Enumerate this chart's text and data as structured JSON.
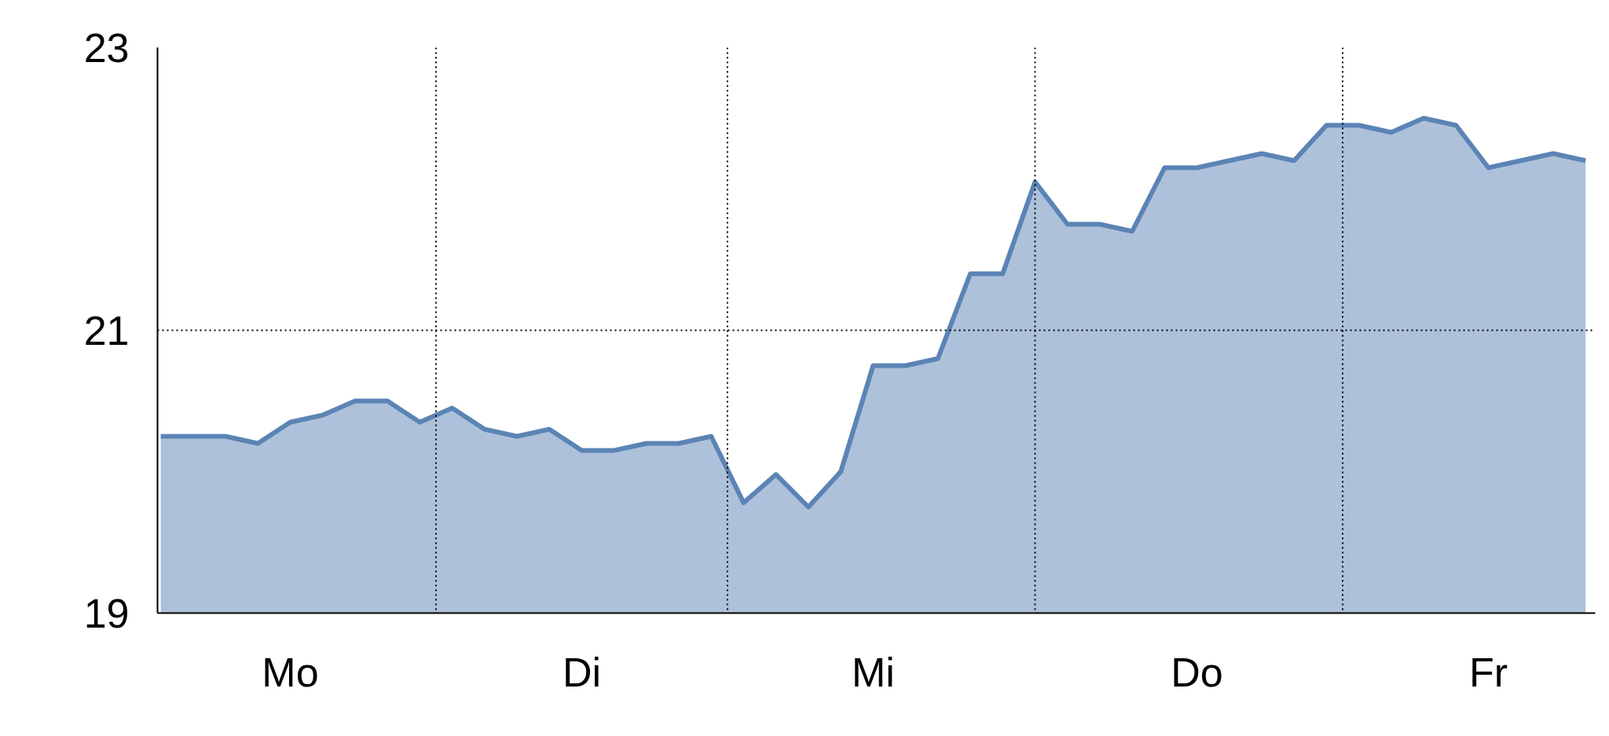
{
  "chart_data": {
    "type": "area",
    "categories": [
      null,
      null,
      null,
      null,
      "Mo",
      null,
      null,
      null,
      null,
      null,
      null,
      null,
      null,
      "Di",
      null,
      null,
      null,
      null,
      null,
      null,
      null,
      null,
      "Mi",
      null,
      null,
      null,
      null,
      null,
      null,
      null,
      null,
      null,
      "Do",
      null,
      null,
      null,
      null,
      null,
      null,
      null,
      null,
      "Fr",
      null,
      null,
      null
    ],
    "series": [
      {
        "color": "#5b84b5",
        "values": [
          20.25,
          20.25,
          20.25,
          20.2,
          20.35,
          20.4,
          20.5,
          20.5,
          20.35,
          20.45,
          20.3,
          20.25,
          20.3,
          20.15,
          20.15,
          20.2,
          20.2,
          20.25,
          19.78,
          19.98,
          19.75,
          20.0,
          20.75,
          20.75,
          20.8,
          21.4,
          21.4,
          22.05,
          21.75,
          21.75,
          21.7,
          22.15,
          22.15,
          22.2,
          22.25,
          22.2,
          22.45,
          22.45,
          22.4,
          22.5,
          22.45,
          22.15,
          22.2,
          22.25,
          22.2
        ]
      }
    ],
    "ylim": [
      19,
      23
    ],
    "yticks": [
      19,
      21,
      23
    ],
    "ref_lines": [
      {
        "axis": "y",
        "value": 21,
        "line_style": "dotted"
      }
    ],
    "grid": "x",
    "marker": "none",
    "line_style": "solid"
  }
}
